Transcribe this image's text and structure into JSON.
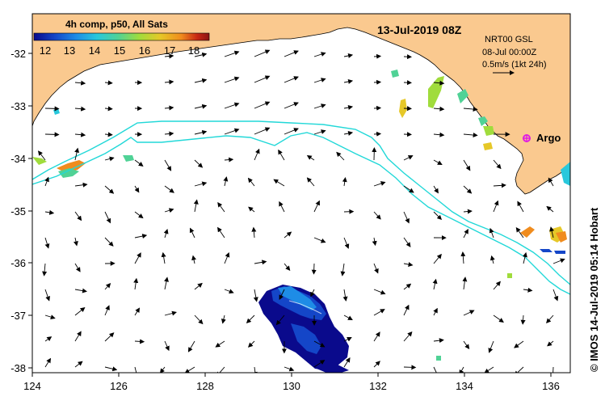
{
  "map": {
    "title": "13-Jul-2019 08Z",
    "colorbar": {
      "title": "4h comp, p50, All Sats",
      "ticks": [
        "12",
        "13",
        "14",
        "15",
        "16",
        "17",
        "18"
      ],
      "colors": [
        "#0a0a8c",
        "#1446c8",
        "#1e8ce6",
        "#28c8dc",
        "#50d296",
        "#a0dc3c",
        "#e6c828",
        "#f08c1e",
        "#c82814",
        "#8c1414"
      ]
    },
    "info": {
      "line1": "NRT00 GSL",
      "line2": "08-Jul 00:00Z",
      "line3": "0.5m/s (1kt 24h)"
    },
    "argo_label": "Argo",
    "credit": "© IMOS 14-Jul-2019 05:14 Hobart",
    "x_ticks": [
      "124",
      "126",
      "128",
      "130",
      "132",
      "134",
      "136"
    ],
    "y_ticks": [
      "-32",
      "-33",
      "-34",
      "-35",
      "-36",
      "-37",
      "-38"
    ],
    "colors": {
      "land": "#fac98f",
      "ocean": "#ffffff",
      "isobath": "#22d8d8",
      "argo": "#e020e0"
    }
  }
}
